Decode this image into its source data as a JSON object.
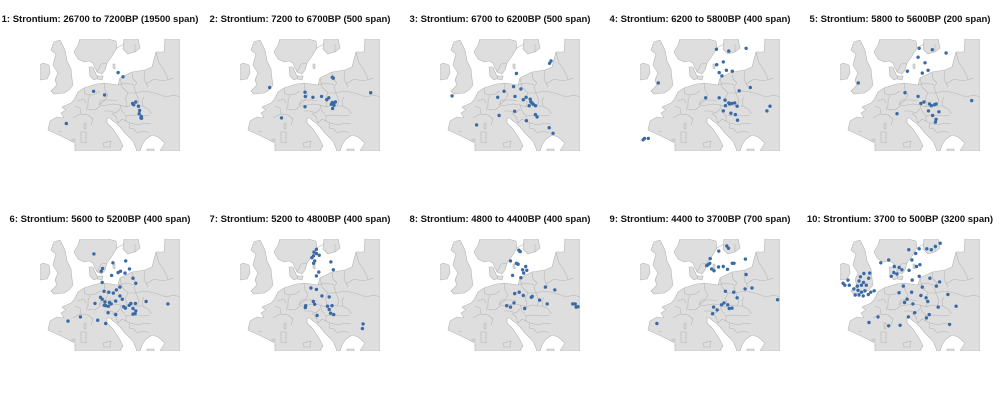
{
  "colors": {
    "sea": "#ffffff",
    "land": "#dedede",
    "border": "#b4b4b4",
    "point": "#3a6aa6"
  },
  "panels": [
    {
      "title": "1: Strontium: 26700 to 7200BP (19500 span)",
      "points": [
        [
          13.1,
          55.3
        ],
        [
          14.5,
          54.4
        ],
        [
          6.0,
          51.3
        ],
        [
          9.2,
          50.5
        ],
        [
          18.2,
          49.0
        ],
        [
          19.0,
          48.1
        ],
        [
          19.3,
          47.2
        ],
        [
          17.3,
          48.7
        ],
        [
          17.6,
          48.4
        ],
        [
          19.2,
          46.5
        ],
        [
          19.8,
          45.9
        ],
        [
          19.7,
          45.6
        ],
        [
          19.9,
          45.5
        ],
        [
          -1.9,
          44.4
        ]
      ]
    },
    {
      "title": "2: Strontium: 7200 to 6700BP (500 span)",
      "points": [
        [
          17.2,
          54.3
        ],
        [
          17.5,
          54.1
        ],
        [
          -0.9,
          52.1
        ],
        [
          9.3,
          51.1
        ],
        [
          9.4,
          50.2
        ],
        [
          11.6,
          50.0
        ],
        [
          14.1,
          50.2
        ],
        [
          16.2,
          49.9
        ],
        [
          15.6,
          49.5
        ],
        [
          16.9,
          48.5
        ],
        [
          17.2,
          48.9
        ],
        [
          17.6,
          48.6
        ],
        [
          18.1,
          49.0
        ],
        [
          17.7,
          48.3
        ],
        [
          17.3,
          47.6
        ],
        [
          9.3,
          48.0
        ],
        [
          2.5,
          45.6
        ],
        [
          28.3,
          51.0
        ]
      ]
    },
    {
      "title": "3: Strontium: 6700 to 6200BP (500 span)",
      "points": [
        [
          22.2,
          57.3
        ],
        [
          22.6,
          57.8
        ],
        [
          12.6,
          55.1
        ],
        [
          11.8,
          52.3
        ],
        [
          13.9,
          51.8
        ],
        [
          9.0,
          51.3
        ],
        [
          7.2,
          50.0
        ],
        [
          -6.0,
          50.3
        ],
        [
          12.2,
          50.2
        ],
        [
          14.6,
          49.5
        ],
        [
          15.4,
          50.0
        ],
        [
          16.6,
          49.6
        ],
        [
          16.8,
          49.0
        ],
        [
          16.3,
          48.2
        ],
        [
          17.1,
          48.8
        ],
        [
          17.5,
          48.5
        ],
        [
          18.1,
          48.2
        ],
        [
          12.1,
          47.0
        ],
        [
          18.1,
          46.3
        ],
        [
          18.6,
          45.8
        ],
        [
          7.6,
          46.1
        ],
        [
          15.5,
          45.0
        ],
        [
          1.1,
          44.1
        ],
        [
          22.1,
          43.5
        ],
        [
          23.2,
          42.3
        ]
      ]
    },
    {
      "title": "4: Strontium: 6200 to 5800BP (400 span)",
      "points": [
        [
          12.6,
          60.3
        ],
        [
          16.2,
          59.9
        ],
        [
          21.2,
          60.5
        ],
        [
          14.6,
          57.6
        ],
        [
          12.7,
          57.0
        ],
        [
          15.5,
          55.8
        ],
        [
          13.4,
          55.3
        ],
        [
          17.2,
          55.6
        ],
        [
          14.2,
          54.6
        ],
        [
          -4.2,
          53.1
        ],
        [
          22.4,
          52.1
        ],
        [
          19.2,
          51.4
        ],
        [
          9.5,
          49.9
        ],
        [
          13.4,
          49.9
        ],
        [
          15.1,
          49.4
        ],
        [
          16.2,
          48.8
        ],
        [
          15.2,
          48.2
        ],
        [
          16.4,
          48.6
        ],
        [
          17.1,
          48.7
        ],
        [
          17.9,
          48.8
        ],
        [
          18.6,
          48.1
        ],
        [
          14.6,
          47.1
        ],
        [
          16.8,
          46.6
        ],
        [
          18.1,
          46.3
        ],
        [
          18.7,
          45.1
        ],
        [
          28.1,
          48.1
        ],
        [
          27.2,
          47.1
        ],
        [
          -8.6,
          40.9
        ],
        [
          -8.2,
          41.2
        ],
        [
          -7.1,
          41.2
        ]
      ]
    },
    {
      "title": "5: Strontium: 5800 to 5600BP (200 span)",
      "points": [
        [
          13.4,
          60.5
        ],
        [
          17.2,
          60.2
        ],
        [
          13.1,
          58.6
        ],
        [
          15.1,
          57.4
        ],
        [
          14.3,
          55.2
        ],
        [
          21.2,
          59.5
        ],
        [
          16.0,
          55.8
        ],
        [
          10.0,
          55.6
        ],
        [
          -4.2,
          53.1
        ],
        [
          13.1,
          50.2
        ],
        [
          9.3,
          51.0
        ],
        [
          13.9,
          48.7
        ],
        [
          14.8,
          49.0
        ],
        [
          16.4,
          48.6
        ],
        [
          16.9,
          48.2
        ],
        [
          17.8,
          48.4
        ],
        [
          18.3,
          48.6
        ],
        [
          16.1,
          47.1
        ],
        [
          17.3,
          46.1
        ],
        [
          19.1,
          46.9
        ],
        [
          18.3,
          45.3
        ],
        [
          18.1,
          44.7
        ],
        [
          7.0,
          46.5
        ],
        [
          28.6,
          49.3
        ]
      ]
    },
    {
      "title": "6: Strontium: 5600 to 5200BP (400 span)",
      "points": [
        [
          6.1,
          59.3
        ],
        [
          8.6,
          56.2
        ],
        [
          8.2,
          55.6
        ],
        [
          11.6,
          57.4
        ],
        [
          15.3,
          57.8
        ],
        [
          13.1,
          55.3
        ],
        [
          13.8,
          55.6
        ],
        [
          15.1,
          55.2
        ],
        [
          16.4,
          56.1
        ],
        [
          11.2,
          54.7
        ],
        [
          17.4,
          54.1
        ],
        [
          8.5,
          53.2
        ],
        [
          13.6,
          52.2
        ],
        [
          18.2,
          53.0
        ],
        [
          9.0,
          51.3
        ],
        [
          10.4,
          51.1
        ],
        [
          11.7,
          50.9
        ],
        [
          12.6,
          51.6
        ],
        [
          13.6,
          50.3
        ],
        [
          14.3,
          49.6
        ],
        [
          12.4,
          49.2
        ],
        [
          10.6,
          48.9
        ],
        [
          11.1,
          48.6
        ],
        [
          9.1,
          48.3
        ],
        [
          6.4,
          48.7
        ],
        [
          8.5,
          49.6
        ],
        [
          9.3,
          49.0
        ],
        [
          8.0,
          50.0
        ],
        [
          9.5,
          48.2
        ],
        [
          10.3,
          48.1
        ],
        [
          14.7,
          48.0
        ],
        [
          15.2,
          47.7
        ],
        [
          16.3,
          48.3
        ],
        [
          16.8,
          48.7
        ],
        [
          18.1,
          48.7
        ],
        [
          17.4,
          47.6
        ],
        [
          18.2,
          47.1
        ],
        [
          18.0,
          46.5
        ],
        [
          17.4,
          46.4
        ],
        [
          21.2,
          49.1
        ],
        [
          27.5,
          48.6
        ],
        [
          10.2,
          46.7
        ],
        [
          12.4,
          46.3
        ],
        [
          7.2,
          45.1
        ],
        [
          2.2,
          45.8
        ],
        [
          -1.4,
          44.9
        ],
        [
          9.5,
          44.4
        ]
      ]
    },
    {
      "title": "7: Strontium: 5200 to 4800BP (400 span)",
      "points": [
        [
          12.6,
          60.3
        ],
        [
          11.9,
          59.7
        ],
        [
          12.6,
          59.4
        ],
        [
          13.4,
          59.0
        ],
        [
          11.3,
          58.5
        ],
        [
          11.8,
          58.9
        ],
        [
          12.1,
          57.8
        ],
        [
          11.8,
          57.3
        ],
        [
          16.8,
          57.6
        ],
        [
          17.5,
          55.9
        ],
        [
          13.3,
          55.4
        ],
        [
          12.6,
          54.6
        ],
        [
          11.0,
          52.0
        ],
        [
          12.6,
          51.7
        ],
        [
          14.2,
          50.3
        ],
        [
          16.3,
          50.1
        ],
        [
          11.7,
          49.1
        ],
        [
          12.1,
          48.5
        ],
        [
          9.5,
          48.2
        ],
        [
          9.4,
          47.8
        ],
        [
          15.8,
          48.1
        ],
        [
          17.1,
          48.2
        ],
        [
          16.3,
          47.4
        ],
        [
          16.7,
          46.6
        ],
        [
          17.6,
          46.3
        ],
        [
          12.8,
          46.1
        ],
        [
          26.1,
          44.3
        ],
        [
          25.9,
          43.3
        ]
      ]
    },
    {
      "title": "8: Strontium: 4800 to 4400BP (400 span)",
      "points": [
        [
          13.3,
          60.1
        ],
        [
          13.7,
          59.8
        ],
        [
          10.9,
          57.8
        ],
        [
          12.6,
          57.3
        ],
        [
          13.1,
          57.1
        ],
        [
          14.4,
          55.9
        ],
        [
          15.3,
          56.6
        ],
        [
          15.6,
          55.8
        ],
        [
          14.7,
          55.2
        ],
        [
          13.9,
          54.2
        ],
        [
          11.5,
          54.7
        ],
        [
          21.0,
          52.2
        ],
        [
          23.7,
          51.6
        ],
        [
          13.4,
          51.1
        ],
        [
          12.1,
          50.8
        ],
        [
          14.6,
          50.4
        ],
        [
          17.2,
          50.2
        ],
        [
          16.9,
          50.0
        ],
        [
          19.3,
          49.4
        ],
        [
          11.9,
          48.8
        ],
        [
          9.8,
          48.2
        ],
        [
          10.9,
          47.9
        ],
        [
          15.0,
          47.6
        ],
        [
          21.5,
          48.6
        ],
        [
          28.9,
          48.6
        ],
        [
          29.9,
          47.9
        ],
        [
          30.4,
          48.0
        ],
        [
          29.6,
          48.6
        ]
      ]
    },
    {
      "title": "9: Strontium: 4400 to 3700BP (700 span)",
      "points": [
        [
          15.6,
          61.0
        ],
        [
          16.1,
          60.5
        ],
        [
          13.3,
          59.9
        ],
        [
          10.8,
          58.3
        ],
        [
          10.7,
          57.3
        ],
        [
          10.2,
          57.0
        ],
        [
          9.8,
          56.8
        ],
        [
          11.2,
          56.1
        ],
        [
          11.9,
          55.7
        ],
        [
          13.2,
          56.5
        ],
        [
          14.6,
          56.6
        ],
        [
          15.8,
          56.0
        ],
        [
          17.2,
          57.3
        ],
        [
          17.7,
          57.3
        ],
        [
          21.0,
          58.2
        ],
        [
          21.2,
          54.9
        ],
        [
          15.2,
          51.3
        ],
        [
          17.6,
          51.1
        ],
        [
          20.9,
          51.8
        ],
        [
          22.9,
          52.0
        ],
        [
          18.6,
          49.9
        ],
        [
          14.8,
          48.8
        ],
        [
          14.1,
          48.4
        ],
        [
          15.9,
          48.4
        ],
        [
          11.8,
          47.9
        ],
        [
          12.8,
          47.3
        ],
        [
          16.3,
          47.6
        ],
        [
          17.1,
          47.7
        ],
        [
          11.5,
          46.5
        ],
        [
          30.3,
          49.5
        ],
        [
          -4.6,
          44.4
        ]
      ]
    },
    {
      "title": "10: Strontium: 3700 to 500BP (3200 span)",
      "points": [
        [
          19.5,
          61.6
        ],
        [
          18.1,
          60.9
        ],
        [
          16.9,
          60.2
        ],
        [
          15.6,
          60.4
        ],
        [
          13.4,
          60.4
        ],
        [
          10.4,
          60.2
        ],
        [
          12.4,
          59.4
        ],
        [
          11.3,
          58.0
        ],
        [
          13.6,
          57.0
        ],
        [
          12.6,
          56.6
        ],
        [
          10.5,
          55.8
        ],
        [
          8.4,
          55.9
        ],
        [
          6.2,
          56.6
        ],
        [
          4.6,
          58.0
        ],
        [
          2.3,
          57.4
        ],
        [
          7.6,
          56.4
        ],
        [
          6.1,
          55.3
        ],
        [
          7.0,
          55.0
        ],
        [
          5.3,
          54.5
        ],
        [
          -0.9,
          55.2
        ],
        [
          -2.6,
          55.1
        ],
        [
          -1.2,
          54.1
        ],
        [
          -3.6,
          54.4
        ],
        [
          -4.0,
          53.5
        ],
        [
          -2.7,
          53.2
        ],
        [
          -4.5,
          52.4
        ],
        [
          -3.3,
          52.6
        ],
        [
          -1.9,
          52.6
        ],
        [
          -5.5,
          51.8
        ],
        [
          -4.3,
          51.5
        ],
        [
          -2.3,
          51.4
        ],
        [
          -3.3,
          51.1
        ],
        [
          -4.0,
          50.5
        ],
        [
          -2.8,
          50.3
        ],
        [
          -1.3,
          50.6
        ],
        [
          -0.6,
          51.1
        ],
        [
          0.4,
          51.4
        ],
        [
          -6.8,
          52.6
        ],
        [
          -8.6,
          53.0
        ],
        [
          -7.2,
          53.7
        ],
        [
          -8.1,
          52.6
        ],
        [
          -5.1,
          50.5
        ],
        [
          11.4,
          53.7
        ],
        [
          13.4,
          54.5
        ],
        [
          16.5,
          54.1
        ],
        [
          19.3,
          53.3
        ],
        [
          14.3,
          52.2
        ],
        [
          11.2,
          51.1
        ],
        [
          18.4,
          52.4
        ],
        [
          7.6,
          51.0
        ],
        [
          8.8,
          52.4
        ],
        [
          13.9,
          50.4
        ],
        [
          15.4,
          49.9
        ],
        [
          9.9,
          49.6
        ],
        [
          9.2,
          48.9
        ],
        [
          11.6,
          48.6
        ],
        [
          15.9,
          49.1
        ],
        [
          21.7,
          50.6
        ],
        [
          24.1,
          48.1
        ],
        [
          18.9,
          47.9
        ],
        [
          16.3,
          46.3
        ],
        [
          12.1,
          46.7
        ],
        [
          10.3,
          45.8
        ],
        [
          15.5,
          45.6
        ],
        [
          7.9,
          44.0
        ],
        [
          1.5,
          45.8
        ],
        [
          4.6,
          43.9
        ],
        [
          -1.1,
          44.6
        ],
        [
          22.2,
          44.2
        ]
      ]
    }
  ]
}
